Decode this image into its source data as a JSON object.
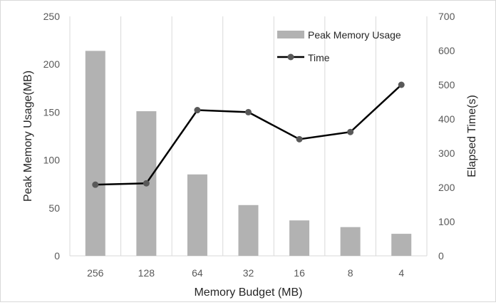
{
  "chart_data": {
    "type": "bar-line-combo",
    "categories": [
      "256",
      "128",
      "64",
      "32",
      "16",
      "8",
      "4"
    ],
    "series": [
      {
        "name": "Peak Memory Usage",
        "type": "bar",
        "axis": "left",
        "color": "#b2b2b2",
        "values": [
          214,
          151,
          85,
          53,
          37,
          30,
          23
        ]
      },
      {
        "name": "Time",
        "type": "line",
        "axis": "right",
        "color": "#000000",
        "marker_color": "#595959",
        "values": [
          208,
          212,
          426,
          420,
          341,
          362,
          500
        ]
      }
    ],
    "xlabel": "Memory Budget (MB)",
    "ylabel_left": "Peak Memory Usage(MB)",
    "ylabel_right": "Elapsed Time(s)",
    "ylim_left": [
      0,
      250
    ],
    "yticks_left": [
      0,
      50,
      100,
      150,
      200,
      250
    ],
    "ylim_right": [
      0,
      700
    ],
    "yticks_right": [
      0,
      100,
      200,
      300,
      400,
      500,
      600,
      700
    ],
    "grid": "vertical",
    "legend_position": "top-right"
  }
}
